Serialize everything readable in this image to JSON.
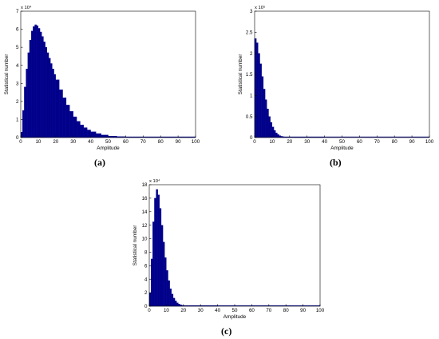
{
  "colors": {
    "bars": "#00008b",
    "axis": "#000000",
    "background": "#ffffff"
  },
  "chart_data": [
    {
      "id": "a",
      "type": "bar",
      "caption": "(a)",
      "xlabel": "Amplitude",
      "ylabel": "Statistical number",
      "exponent_label": "x 10⁴",
      "xlim": [
        0,
        100
      ],
      "ylim": [
        0,
        7
      ],
      "xticks": [
        "0",
        "10",
        "20",
        "30",
        "40",
        "50",
        "60",
        "70",
        "80",
        "90",
        "100"
      ],
      "yticks": [
        "0",
        "1",
        "2",
        "3",
        "4",
        "5",
        "6",
        "7"
      ],
      "x": [
        0,
        1,
        2,
        3,
        4,
        5,
        6,
        7,
        8,
        9,
        10,
        11,
        12,
        13,
        14,
        15,
        16,
        17,
        18,
        19,
        20,
        22,
        24,
        26,
        28,
        30,
        32,
        34,
        36,
        38,
        40,
        43,
        46,
        50,
        55,
        60,
        65,
        70,
        75,
        80,
        90,
        100
      ],
      "values": [
        0.3,
        1.5,
        2.8,
        3.8,
        4.7,
        5.4,
        5.9,
        6.15,
        6.25,
        6.2,
        6.05,
        5.85,
        5.6,
        5.3,
        5.0,
        4.7,
        4.4,
        4.1,
        3.8,
        3.5,
        3.2,
        2.65,
        2.2,
        1.8,
        1.45,
        1.15,
        0.9,
        0.7,
        0.55,
        0.42,
        0.32,
        0.22,
        0.14,
        0.08,
        0.05,
        0.03,
        0.02,
        0.012,
        0.008,
        0.005,
        0.002,
        0.0
      ]
    },
    {
      "id": "b",
      "type": "bar",
      "caption": "(b)",
      "xlabel": "Amplitude",
      "ylabel": "Statistical number",
      "exponent_label": "x 10⁵",
      "xlim": [
        0,
        100
      ],
      "ylim": [
        0,
        3
      ],
      "xticks": [
        "0",
        "10",
        "20",
        "30",
        "40",
        "50",
        "60",
        "70",
        "80",
        "90",
        "100"
      ],
      "yticks": [
        "0",
        "0.5",
        "1",
        "1.5",
        "2",
        "2.5",
        "3"
      ],
      "x": [
        0,
        1,
        2,
        3,
        4,
        5,
        6,
        7,
        8,
        9,
        10,
        11,
        12,
        13,
        14,
        15,
        16,
        17,
        18,
        20,
        25,
        30,
        40,
        60,
        100
      ],
      "values": [
        2.35,
        2.25,
        2.0,
        1.75,
        1.45,
        1.15,
        0.9,
        0.68,
        0.5,
        0.36,
        0.25,
        0.17,
        0.11,
        0.07,
        0.045,
        0.03,
        0.02,
        0.012,
        0.008,
        0.004,
        0.001,
        0.0005,
        0.0,
        0.0,
        0.0
      ]
    },
    {
      "id": "c",
      "type": "bar",
      "caption": "(c)",
      "xlabel": "Amplitude",
      "ylabel": "Statistical number",
      "exponent_label": "x 10⁴",
      "xlim": [
        0,
        100
      ],
      "ylim": [
        0,
        18
      ],
      "xticks": [
        "0",
        "10",
        "20",
        "30",
        "40",
        "50",
        "60",
        "70",
        "80",
        "90",
        "100"
      ],
      "yticks": [
        "0",
        "2",
        "4",
        "6",
        "8",
        "10",
        "12",
        "14",
        "16",
        "18"
      ],
      "x": [
        0,
        1,
        2,
        3,
        4,
        5,
        6,
        7,
        8,
        9,
        10,
        11,
        12,
        13,
        14,
        15,
        16,
        17,
        18,
        19,
        20,
        22,
        25,
        30,
        40,
        60,
        100
      ],
      "values": [
        2.0,
        7.0,
        12.5,
        16.0,
        17.3,
        16.5,
        14.5,
        12.0,
        9.5,
        7.2,
        5.3,
        3.8,
        2.6,
        1.8,
        1.2,
        0.8,
        0.5,
        0.32,
        0.2,
        0.12,
        0.08,
        0.03,
        0.01,
        0.005,
        0.0,
        0.0,
        0.0
      ]
    }
  ]
}
